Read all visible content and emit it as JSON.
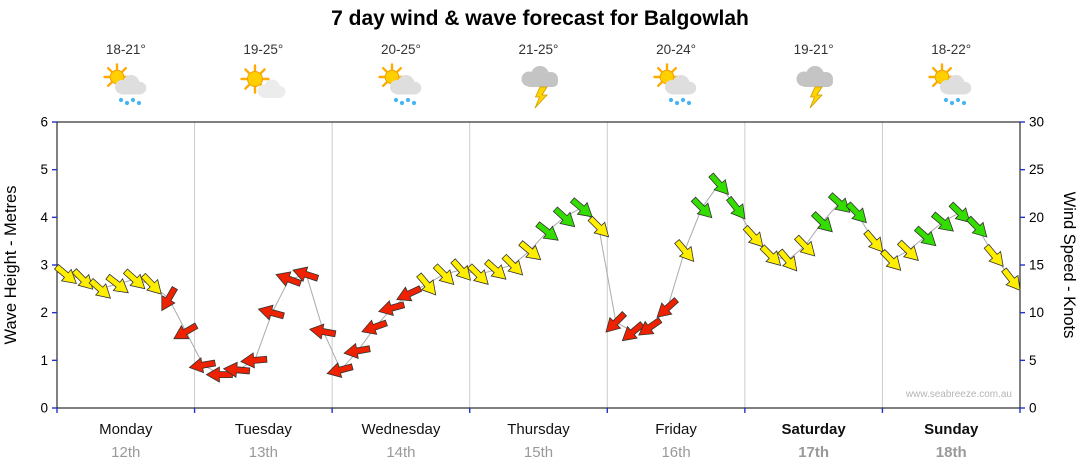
{
  "title": "7 day wind & wave forecast for Balgowlah",
  "watermark": "www.seabreeze.com.au",
  "axes": {
    "left_label": "Wave Height - Metres",
    "right_label": "Wind Speed - Knots"
  },
  "days": [
    {
      "name": "Monday",
      "date": "12th",
      "temp": "18-21°",
      "icon": "sun-cloud-rain",
      "bold": false
    },
    {
      "name": "Tuesday",
      "date": "13th",
      "temp": "19-25°",
      "icon": "sun-cloud",
      "bold": false
    },
    {
      "name": "Wednesday",
      "date": "14th",
      "temp": "20-25°",
      "icon": "sun-cloud-rain",
      "bold": false
    },
    {
      "name": "Thursday",
      "date": "15th",
      "temp": "21-25°",
      "icon": "storm",
      "bold": false
    },
    {
      "name": "Friday",
      "date": "16th",
      "temp": "20-24°",
      "icon": "sun-cloud-rain",
      "bold": false
    },
    {
      "name": "Saturday",
      "date": "17th",
      "temp": "19-21°",
      "icon": "storm",
      "bold": true
    },
    {
      "name": "Sunday",
      "date": "18th",
      "temp": "18-22°",
      "icon": "sun-cloud-rain",
      "bold": true
    }
  ],
  "chart_data": {
    "type": "line",
    "subtype": "wind-arrow-forecast",
    "x_axis": "7 days, 8 points per day (3-hour intervals)",
    "y_left": {
      "label": "Wave Height - Metres",
      "min": 0,
      "max": 6,
      "ticks": [
        0,
        1,
        2,
        3,
        4,
        5,
        6
      ]
    },
    "y_right": {
      "label": "Wind Speed - Knots",
      "min": 0,
      "max": 30,
      "ticks": [
        0,
        5,
        10,
        15,
        20,
        25,
        30
      ]
    },
    "arrow_colors": {
      "yellow": "#ffee00",
      "red": "#ee2200",
      "green": "#33dd00"
    },
    "grid": "vertical day separators only, no horizontal gridlines",
    "legend": "arrow colour = wind character (red light/offshore, yellow moderate, green strong)",
    "points_format": [
      "wind_speed_knots",
      "arrow_rotation_deg",
      "color"
    ],
    "points": [
      [
        14,
        40,
        "yellow"
      ],
      [
        13.5,
        45,
        "yellow"
      ],
      [
        12.5,
        42,
        "yellow"
      ],
      [
        13,
        38,
        "yellow"
      ],
      [
        13.5,
        42,
        "yellow"
      ],
      [
        13,
        46,
        "yellow"
      ],
      [
        11.5,
        120,
        "red"
      ],
      [
        8,
        150,
        "red"
      ],
      [
        4.5,
        170,
        "red"
      ],
      [
        3.5,
        180,
        "red"
      ],
      [
        4,
        185,
        "red"
      ],
      [
        5,
        175,
        "red"
      ],
      [
        10,
        195,
        "red"
      ],
      [
        13.5,
        200,
        "red"
      ],
      [
        14,
        198,
        "red"
      ],
      [
        8,
        190,
        "red"
      ],
      [
        4,
        165,
        "red"
      ],
      [
        6,
        170,
        "red"
      ],
      [
        8.5,
        160,
        "red"
      ],
      [
        10.5,
        165,
        "red"
      ],
      [
        12,
        155,
        "red"
      ],
      [
        13,
        50,
        "yellow"
      ],
      [
        14,
        45,
        "yellow"
      ],
      [
        14.5,
        48,
        "yellow"
      ],
      [
        14,
        45,
        "yellow"
      ],
      [
        14.5,
        42,
        "yellow"
      ],
      [
        15,
        45,
        "yellow"
      ],
      [
        16.5,
        40,
        "yellow"
      ],
      [
        18.5,
        38,
        "green"
      ],
      [
        20,
        42,
        "green"
      ],
      [
        21,
        40,
        "green"
      ],
      [
        19,
        45,
        "yellow"
      ],
      [
        9,
        135,
        "red"
      ],
      [
        8,
        140,
        "red"
      ],
      [
        8.5,
        145,
        "red"
      ],
      [
        10.5,
        138,
        "red"
      ],
      [
        16.5,
        50,
        "yellow"
      ],
      [
        21,
        45,
        "green"
      ],
      [
        23.5,
        48,
        "green"
      ],
      [
        21,
        52,
        "green"
      ],
      [
        18,
        48,
        "yellow"
      ],
      [
        16,
        45,
        "yellow"
      ],
      [
        15.5,
        50,
        "yellow"
      ],
      [
        17,
        46,
        "yellow"
      ],
      [
        19.5,
        44,
        "green"
      ],
      [
        21.5,
        42,
        "green"
      ],
      [
        20.5,
        46,
        "green"
      ],
      [
        17.5,
        50,
        "yellow"
      ],
      [
        15.5,
        46,
        "yellow"
      ],
      [
        16.5,
        44,
        "yellow"
      ],
      [
        18,
        42,
        "green"
      ],
      [
        19.5,
        40,
        "green"
      ],
      [
        20.5,
        44,
        "green"
      ],
      [
        19,
        46,
        "green"
      ],
      [
        16,
        50,
        "yellow"
      ],
      [
        13.5,
        52,
        "yellow"
      ]
    ]
  }
}
